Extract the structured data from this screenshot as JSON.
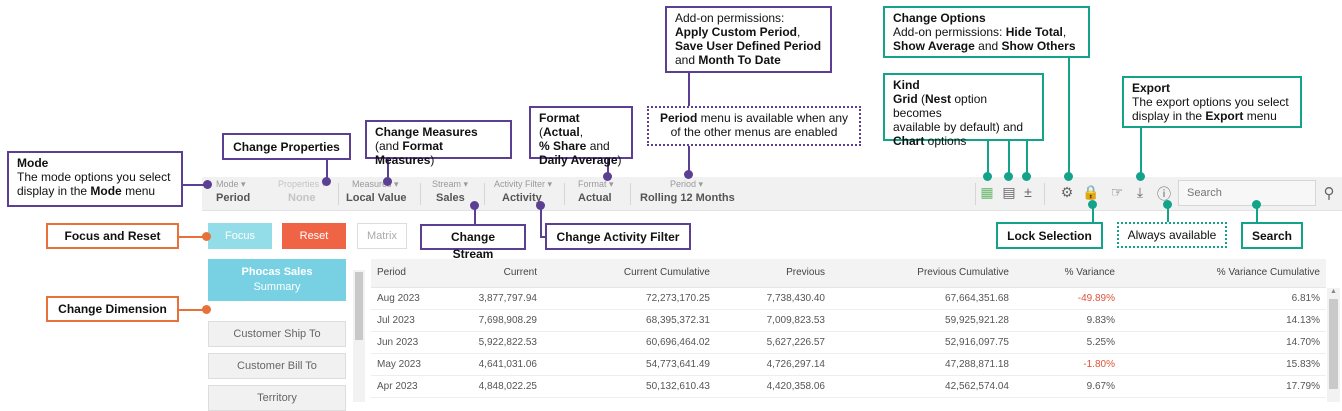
{
  "annotations": {
    "mode": {
      "title": "Mode",
      "line1": "The mode options you select",
      "pre": "display in the ",
      "bold": "Mode",
      "post": " menu"
    },
    "change_properties": "Change Properties",
    "change_measures": {
      "title": "Change Measures",
      "pre": "(and ",
      "bold": "Format Measures",
      "post": ")"
    },
    "format": {
      "pre": "Format",
      "b1": "Actual",
      "b2": "% Share",
      "and": " and",
      "b3": "Daily Average",
      "close": ")"
    },
    "period_note": {
      "bold": "Period",
      "rest": " menu is available when any",
      "line2": "of the other menus are enabled"
    },
    "addon": {
      "line1": "Add-on permissions:",
      "b1": "Apply Custom Period",
      "b2": "Save User Defined Period",
      "and": "and ",
      "b3": "Month To Date"
    },
    "change_options": {
      "title": "Change Options",
      "pre": "Add-on permissions: ",
      "b1": "Hide Total",
      "b2": "Show Average",
      "and": " and ",
      "b3": "Show Others"
    },
    "kind": {
      "title": "Kind",
      "b1": "Grid",
      "pre": " (",
      "b2": "Nest",
      "rest": " option becomes",
      "line2": "available by default) and",
      "b3": "Chart",
      "line3": " options"
    },
    "export": {
      "title": "Export",
      "line1": "The export options you select",
      "pre": "display in the ",
      "bold": "Export",
      "post": " menu"
    },
    "focus_reset": "Focus and Reset",
    "change_stream": "Change Stream",
    "change_activity_filter": "Change Activity Filter",
    "change_dimension": "Change Dimension",
    "lock_selection": "Lock Selection",
    "always_available": "Always available",
    "search": "Search"
  },
  "toolbar": {
    "menus": [
      {
        "label": "Mode",
        "value": "Period"
      },
      {
        "label": "Properties",
        "value": "None"
      },
      {
        "label": "Measures",
        "value": "Local Value"
      },
      {
        "label": "Stream",
        "value": "Sales"
      },
      {
        "label": "Activity Filter",
        "value": "Activity"
      },
      {
        "label": "Format",
        "value": "Actual"
      },
      {
        "label": "Period",
        "value": "Rolling 12 Months"
      }
    ],
    "search_placeholder": "Search"
  },
  "buttons": {
    "focus": "Focus",
    "reset": "Reset",
    "matrix": "Matrix"
  },
  "dimensions": {
    "selected_title": "Phocas Sales",
    "selected_sub": "Summary",
    "items": [
      "Customer Ship To",
      "Customer Bill To",
      "Territory"
    ]
  },
  "colors": {
    "purple": "#5b3f92",
    "orange": "#e8713a",
    "teal": "#13a38a",
    "focus": "#93dde9",
    "reset": "#f06446",
    "dimension": "#77d1e3"
  },
  "table": {
    "headers": [
      "Period",
      "Current",
      "Current Cumulative",
      "Previous",
      "Previous Cumulative",
      "% Variance",
      "% Variance Cumulative"
    ],
    "rows": [
      [
        "Aug 2023",
        "3,877,797.94",
        "72,273,170.25",
        "7,738,430.40",
        "67,664,351.68",
        "-49.89%",
        "6.81%"
      ],
      [
        "Jul 2023",
        "7,698,908.29",
        "68,395,372.31",
        "7,009,823.53",
        "59,925,921.28",
        "9.83%",
        "14.13%"
      ],
      [
        "Jun 2023",
        "5,922,822.53",
        "60,696,464.02",
        "5,627,226.57",
        "52,916,097.75",
        "5.25%",
        "14.70%"
      ],
      [
        "May 2023",
        "4,641,031.06",
        "54,773,641.49",
        "4,726,297.14",
        "47,288,871.18",
        "-1.80%",
        "15.83%"
      ],
      [
        "Apr 2023",
        "4,848,022.25",
        "50,132,610.43",
        "4,420,358.06",
        "42,562,574.04",
        "9.67%",
        "17.79%"
      ]
    ]
  }
}
